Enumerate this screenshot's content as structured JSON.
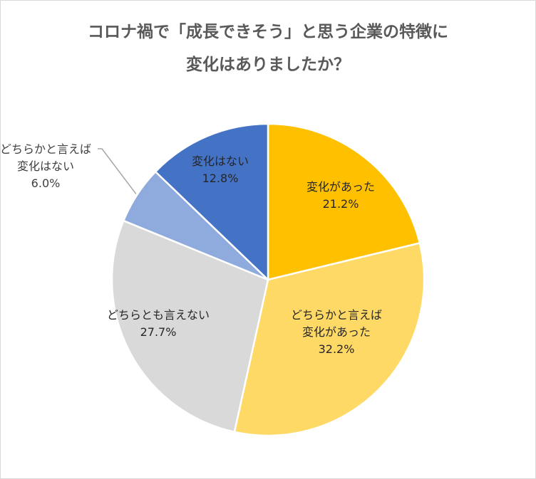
{
  "title_line1": "コロナ禍で「成長できそう」と思う企業の特徴に",
  "title_line2": "変化はありましたか？",
  "chart_data": {
    "type": "pie",
    "title": "コロナ禍で「成長できそう」と思う企業の特徴に変化はありましたか？",
    "start_angle_deg": 0,
    "direction": "clockwise",
    "legend": "none",
    "slices": [
      {
        "label_lines": [
          "変化があった"
        ],
        "value": 21.2,
        "value_label": "21.2%",
        "color": "#FFC000"
      },
      {
        "label_lines": [
          "どちらかと言えば",
          "変化があった"
        ],
        "value": 32.2,
        "value_label": "32.2%",
        "color": "#FFD966"
      },
      {
        "label_lines": [
          "どちらとも言えない"
        ],
        "value": 27.7,
        "value_label": "27.7%",
        "color": "#D9D9D9"
      },
      {
        "label_lines": [
          "どちらかと言えば",
          "変化はない"
        ],
        "value": 6.0,
        "value_label": "6.0%",
        "color": "#8FAADC"
      },
      {
        "label_lines": [
          "変化はない"
        ],
        "value": 12.8,
        "value_label": "12.8%",
        "color": "#4472C4"
      }
    ]
  }
}
